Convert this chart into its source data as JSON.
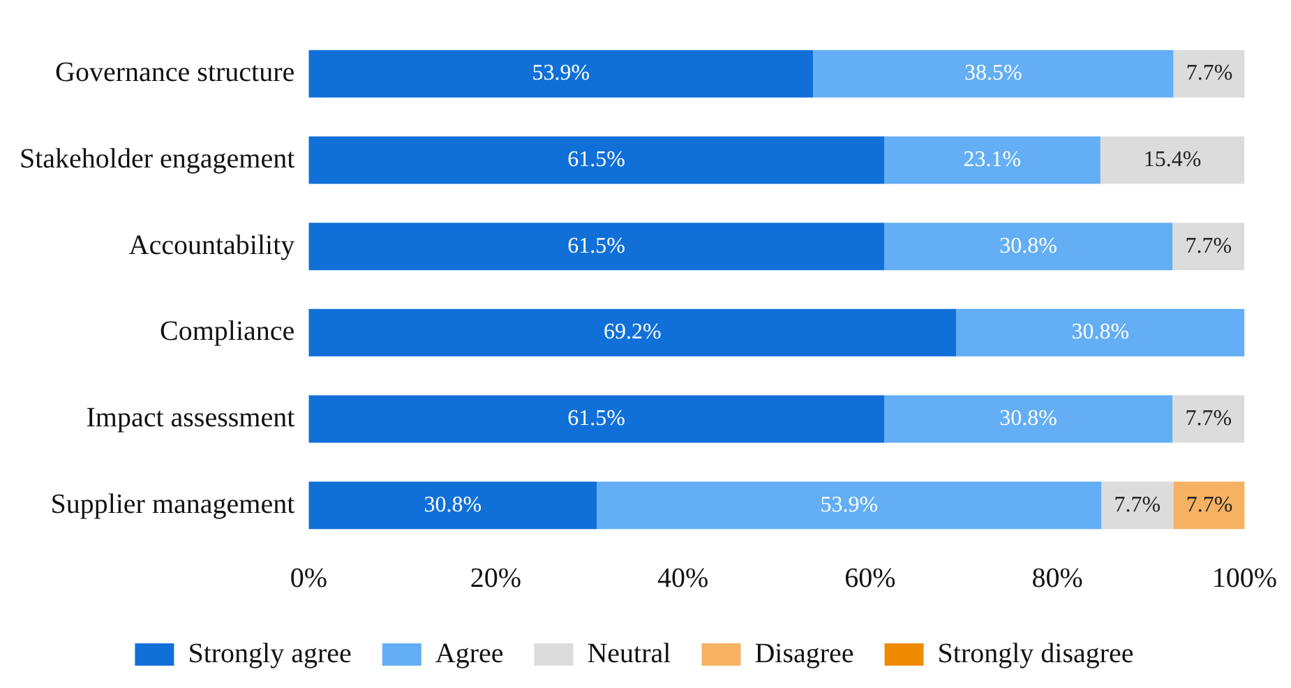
{
  "chart_data": {
    "type": "bar",
    "orientation": "horizontal",
    "stacked": true,
    "categories": [
      "Governance structure",
      "Stakeholder engagement",
      "Accountability",
      "Compliance",
      "Impact assessment",
      "Supplier management"
    ],
    "series": [
      {
        "name": "Strongly agree",
        "color": "#1170d8",
        "values": [
          53.9,
          61.5,
          61.5,
          69.2,
          61.5,
          30.8
        ],
        "value_labels": [
          "53.9%",
          "61.5%",
          "61.5%",
          "69.2%",
          "61.5%",
          "30.8%"
        ]
      },
      {
        "name": "Agree",
        "color": "#63aef5",
        "values": [
          38.5,
          23.1,
          30.8,
          30.8,
          30.8,
          53.9
        ],
        "value_labels": [
          "38.5%",
          "23.1%",
          "30.8%",
          "30.8%",
          "30.8%",
          "53.9%"
        ]
      },
      {
        "name": "Neutral",
        "color": "#dcdcdc",
        "values": [
          7.7,
          15.4,
          7.7,
          0,
          7.7,
          7.7
        ],
        "value_labels": [
          "7.7%",
          "15.4%",
          "7.7%",
          null,
          "7.7%",
          "7.7%"
        ]
      },
      {
        "name": "Disagree",
        "color": "#f5b263",
        "values": [
          0,
          0,
          0,
          0,
          0,
          7.7
        ],
        "value_labels": [
          null,
          null,
          null,
          null,
          null,
          "7.7%"
        ]
      },
      {
        "name": "Strongly disagree",
        "color": "#f08a00",
        "values": [
          0,
          0,
          0,
          0,
          0,
          0
        ],
        "value_labels": [
          null,
          null,
          null,
          null,
          null,
          null
        ]
      }
    ],
    "xlim": [
      0,
      100
    ],
    "xticks": [
      {
        "value": 0,
        "label": "0%"
      },
      {
        "value": 20,
        "label": "20%"
      },
      {
        "value": 40,
        "label": "40%"
      },
      {
        "value": 60,
        "label": "60%"
      },
      {
        "value": 80,
        "label": "80%"
      },
      {
        "value": 100,
        "label": "100%"
      }
    ],
    "grid": false,
    "legend": "bottom"
  }
}
